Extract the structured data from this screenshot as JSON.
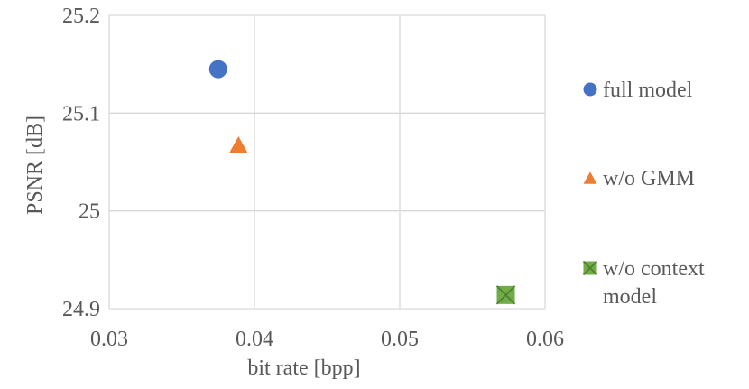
{
  "chart_data": {
    "type": "scatter",
    "title": "",
    "xlabel": "bit rate [bpp]",
    "ylabel": "PSNR [dB]",
    "xlim": [
      0.03,
      0.06
    ],
    "ylim": [
      24.9,
      25.2
    ],
    "x_ticks": [
      "0.03",
      "0.04",
      "0.05",
      "0.06"
    ],
    "y_ticks": [
      "24.9",
      "25",
      "25.1",
      "25.2"
    ],
    "x_tick_values": [
      0.03,
      0.04,
      0.05,
      0.06
    ],
    "y_tick_values": [
      24.9,
      25.0,
      25.1,
      25.2
    ],
    "grid": true,
    "legend_position": "right",
    "series": [
      {
        "name": "full model",
        "legend_lines": [
          "full model"
        ],
        "marker": "circle",
        "color": "#4472C4",
        "points": [
          {
            "x": 0.0375,
            "y": 25.145
          }
        ]
      },
      {
        "name": "w/o GMM",
        "legend_lines": [
          "w/o GMM"
        ],
        "marker": "triangle",
        "color": "#ED7D31",
        "points": [
          {
            "x": 0.0389,
            "y": 25.068
          }
        ]
      },
      {
        "name": "w/o context model",
        "legend_lines": [
          "w/o context",
          "model"
        ],
        "marker": "x-square",
        "color": "#70AD47",
        "points": [
          {
            "x": 0.0573,
            "y": 24.914
          }
        ]
      }
    ]
  }
}
